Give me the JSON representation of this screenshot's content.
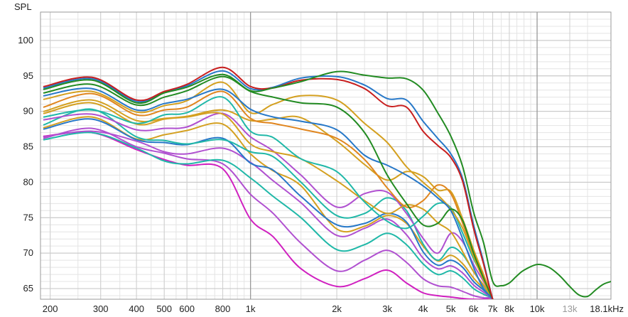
{
  "chart_data": {
    "type": "line",
    "title": "",
    "ylabel": "SPL",
    "xlabel": "",
    "x_scale": "log",
    "xlim": [
      185,
      18100
    ],
    "ylim": [
      63.5,
      104
    ],
    "grid": true,
    "legend": "none",
    "x_ticks": [
      {
        "value": 200,
        "label": "200",
        "muted": false
      },
      {
        "value": 300,
        "label": "300",
        "muted": false
      },
      {
        "value": 400,
        "label": "400",
        "muted": false
      },
      {
        "value": 500,
        "label": "500",
        "muted": false
      },
      {
        "value": 600,
        "label": "600",
        "muted": false
      },
      {
        "value": 800,
        "label": "800",
        "muted": false
      },
      {
        "value": 1000,
        "label": "1k",
        "muted": false
      },
      {
        "value": 2000,
        "label": "2k",
        "muted": false
      },
      {
        "value": 3000,
        "label": "3k",
        "muted": false
      },
      {
        "value": 4000,
        "label": "4k",
        "muted": false
      },
      {
        "value": 5000,
        "label": "5k",
        "muted": false
      },
      {
        "value": 6000,
        "label": "6k",
        "muted": false
      },
      {
        "value": 7000,
        "label": "7k",
        "muted": false
      },
      {
        "value": 8000,
        "label": "8k",
        "muted": false
      },
      {
        "value": 10000,
        "label": "10k",
        "muted": false
      },
      {
        "value": 13000,
        "label": "13k",
        "muted": true
      },
      {
        "value": 18100,
        "label": "18.1kHz",
        "muted": false
      }
    ],
    "y_ticks": [
      65,
      70,
      75,
      80,
      85,
      90,
      95,
      100
    ],
    "x": [
      190,
      280,
      400,
      500,
      600,
      800,
      1000,
      1200,
      1500,
      2000,
      2500,
      3000,
      3500,
      4000,
      4500,
      5000,
      5500,
      6000,
      6500,
      7000
    ],
    "series": [
      {
        "color": "#228b22",
        "values": [
          93.1,
          94.4,
          91.2,
          92.6,
          93.4,
          95.2,
          92.9,
          93.3,
          94.2,
          95.6,
          95.1,
          94.7,
          94.6,
          93.0,
          89.8,
          86.5,
          82.2,
          75.8,
          71.5,
          66.0
        ],
        "tail_x": [
          7000,
          7500,
          8000,
          8500,
          9000,
          10000,
          11000,
          12000,
          13000,
          14000,
          15000,
          16000,
          17000,
          18100
        ],
        "tail_y": [
          66.0,
          65.4,
          65.8,
          66.8,
          67.6,
          68.4,
          68.0,
          66.8,
          65.3,
          64.1,
          63.9,
          64.8,
          65.6,
          66.0
        ]
      },
      {
        "color": "#c81e1e",
        "values": [
          93.5,
          94.8,
          91.6,
          92.8,
          93.8,
          96.2,
          93.5,
          93.3,
          94.4,
          94.5,
          93.2,
          90.8,
          90.6,
          87.2,
          85.2,
          83.5,
          80.1,
          73.5,
          68.5,
          63.5
        ]
      },
      {
        "color": "#2778c8",
        "values": [
          93.3,
          94.6,
          91.4,
          92.7,
          93.6,
          95.7,
          93.2,
          93.4,
          94.7,
          94.9,
          93.7,
          91.8,
          91.6,
          88.6,
          86.2,
          84.0,
          80.5,
          74.0,
          68.8,
          63.5
        ]
      },
      {
        "color": "#228b22",
        "values": [
          92.6,
          93.8,
          90.9,
          92.0,
          92.9,
          94.9,
          92.8,
          92.0,
          91.2,
          90.6,
          87.0,
          81.0,
          77.0,
          74.0,
          74.2,
          76.2,
          74.6,
          70.0,
          66.5,
          63.5
        ]
      },
      {
        "color": "#2778c8",
        "values": [
          92.2,
          93.2,
          90.2,
          91.1,
          91.7,
          93.1,
          90.3,
          89.2,
          88.6,
          87.4,
          83.8,
          82.4,
          81.0,
          79.5,
          77.8,
          76.0,
          72.0,
          68.0,
          65.0,
          63.5
        ]
      },
      {
        "color": "#d4a020",
        "values": [
          91.7,
          92.8,
          89.9,
          90.8,
          91.5,
          94.1,
          89.8,
          91.0,
          92.2,
          91.6,
          88.3,
          85.6,
          82.2,
          80.0,
          78.2,
          76.2,
          73.5,
          69.5,
          66.2,
          63.5
        ]
      },
      {
        "color": "#e0861f",
        "values": [
          90.6,
          92.5,
          89.5,
          90.2,
          90.6,
          92.8,
          89.0,
          88.3,
          87.5,
          86.2,
          83.2,
          79.2,
          76.5,
          77.4,
          79.6,
          78.4,
          74.2,
          70.0,
          66.8,
          63.5
        ]
      },
      {
        "color": "#20b8a8",
        "values": [
          89.2,
          90.2,
          88.3,
          89.5,
          89.8,
          92.0,
          87.2,
          86.3,
          83.3,
          81.5,
          77.2,
          74.5,
          73.5,
          75.2,
          77.0,
          76.4,
          72.8,
          69.2,
          66.5,
          63.5
        ]
      },
      {
        "color": "#d4a020",
        "values": [
          90.0,
          91.6,
          88.7,
          89.0,
          89.3,
          90.2,
          88.7,
          88.9,
          89.1,
          85.8,
          82.5,
          80.3,
          81.5,
          80.8,
          78.9,
          78.7,
          74.8,
          70.5,
          67.0,
          63.5
        ]
      },
      {
        "color": "#d4a020",
        "values": [
          89.7,
          91.2,
          88.2,
          88.9,
          89.2,
          89.6,
          85.4,
          84.3,
          83.3,
          80.2,
          77.4,
          75.6,
          76.8,
          76.2,
          74.3,
          73.0,
          70.2,
          67.4,
          65.5,
          63.5
        ]
      },
      {
        "color": "#b050d0",
        "values": [
          88.8,
          89.6,
          87.4,
          87.6,
          87.8,
          89.7,
          86.4,
          84.4,
          81.0,
          76.5,
          78.4,
          78.6,
          75.6,
          72.1,
          70.0,
          72.8,
          71.6,
          68.4,
          66.0,
          63.5
        ]
      },
      {
        "color": "#20b8a8",
        "values": [
          88.1,
          90.3,
          86.4,
          85.9,
          85.4,
          86.0,
          84.3,
          83.6,
          80.0,
          75.3,
          75.6,
          77.8,
          76.0,
          71.3,
          69.0,
          70.8,
          69.8,
          67.4,
          65.4,
          63.5
        ]
      },
      {
        "color": "#2778c8",
        "values": [
          87.5,
          88.9,
          86.0,
          85.6,
          85.3,
          86.2,
          82.7,
          81.7,
          78.0,
          74.0,
          74.2,
          75.6,
          74.4,
          70.2,
          68.3,
          69.0,
          68.0,
          66.0,
          64.8,
          63.5
        ]
      },
      {
        "color": "#b050d0",
        "values": [
          86.4,
          87.2,
          85.8,
          84.3,
          84.0,
          84.8,
          82.8,
          80.2,
          77.1,
          72.5,
          73.5,
          74.8,
          72.6,
          69.3,
          67.8,
          68.2,
          67.2,
          65.5,
          64.5,
          63.5
        ]
      },
      {
        "color": "#20b8a8",
        "values": [
          86.0,
          87.0,
          84.8,
          83.0,
          82.6,
          83.1,
          80.6,
          78.0,
          75.0,
          70.5,
          71.2,
          72.8,
          71.2,
          68.5,
          67.0,
          67.5,
          66.5,
          65.0,
          64.2,
          63.5
        ]
      },
      {
        "color": "#d4a020",
        "values": [
          87.7,
          89.2,
          86.1,
          86.7,
          87.3,
          88.2,
          84.0,
          81.6,
          79.5,
          73.4,
          73.8,
          75.3,
          74.2,
          71.0,
          68.9,
          69.7,
          68.5,
          66.5,
          65.0,
          63.5
        ]
      },
      {
        "color": "#b050d0",
        "values": [
          86.2,
          87.6,
          85.0,
          84.1,
          83.3,
          82.6,
          78.3,
          75.6,
          71.4,
          67.5,
          69.0,
          70.4,
          68.7,
          66.4,
          65.4,
          65.2,
          64.6,
          64.0,
          63.7,
          63.5
        ]
      },
      {
        "color": "#d020c0",
        "values": [
          86.5,
          87.0,
          84.6,
          83.2,
          82.4,
          81.9,
          74.8,
          72.3,
          67.8,
          65.3,
          66.4,
          67.6,
          65.8,
          64.4,
          64.0,
          63.8,
          63.6,
          63.5,
          63.5,
          63.5
        ]
      }
    ]
  }
}
